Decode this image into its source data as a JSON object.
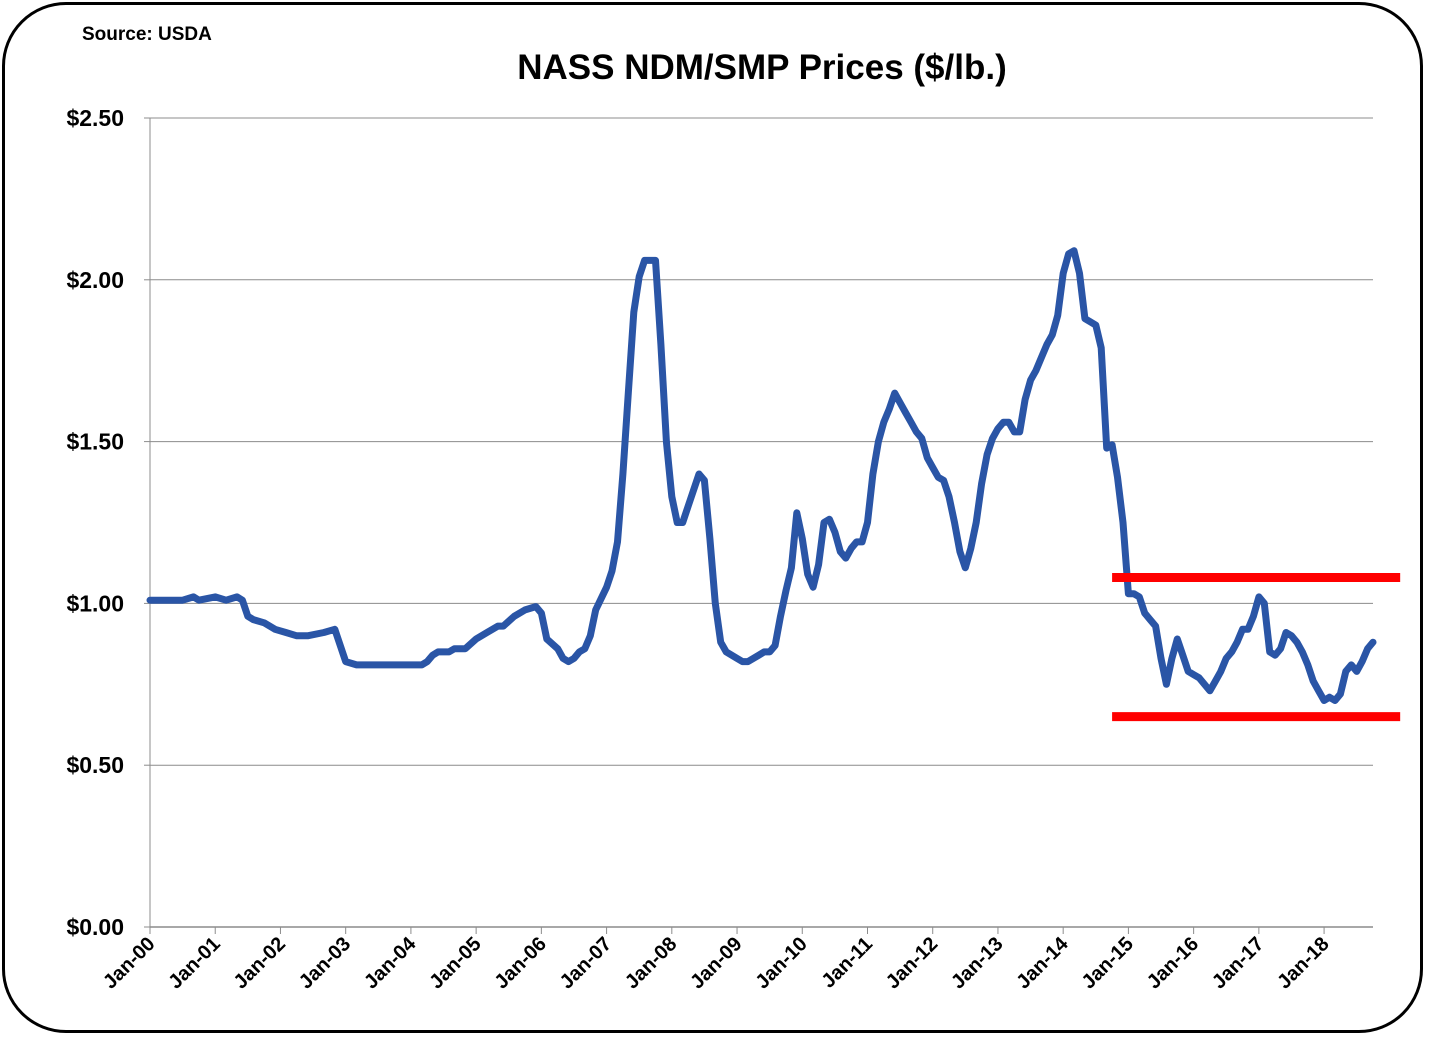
{
  "chart_data": {
    "type": "line",
    "title": "NASS NDM/SMP Prices ($/lb.)",
    "source_note": "Source: USDA",
    "xlabel": "",
    "ylabel": "",
    "ylim": [
      0,
      2.5
    ],
    "y_ticks": [
      0,
      0.5,
      1.0,
      1.5,
      2.0,
      2.5
    ],
    "y_tick_labels": [
      "$0.00",
      "$0.50",
      "$1.00",
      "$1.50",
      "$2.00",
      "$2.50"
    ],
    "x_tick_labels": [
      "Jan-00",
      "Jan-01",
      "Jan-02",
      "Jan-03",
      "Jan-04",
      "Jan-05",
      "Jan-06",
      "Jan-07",
      "Jan-08",
      "Jan-09",
      "Jan-10",
      "Jan-11",
      "Jan-12",
      "Jan-13",
      "Jan-14",
      "Jan-15",
      "Jan-16",
      "Jan-17",
      "Jan-18"
    ],
    "xlim": [
      "2000-01",
      "2018-10"
    ],
    "grid": "horizontal",
    "legend": "none",
    "colors": {
      "series": "#2a55a6",
      "bands": "#ff0000",
      "grid": "#8c8c8c"
    },
    "series": [
      {
        "points": [
          [
            "2000-01",
            1.01
          ],
          [
            "2000-07",
            1.01
          ],
          [
            "2000-09",
            1.02
          ],
          [
            "2000-10",
            1.01
          ],
          [
            "2001-01",
            1.02
          ],
          [
            "2001-03",
            1.01
          ],
          [
            "2001-05",
            1.02
          ],
          [
            "2001-06",
            1.01
          ],
          [
            "2001-07",
            0.96
          ],
          [
            "2001-08",
            0.95
          ],
          [
            "2001-10",
            0.94
          ],
          [
            "2001-12",
            0.92
          ],
          [
            "2002-02",
            0.91
          ],
          [
            "2002-04",
            0.9
          ],
          [
            "2002-06",
            0.9
          ],
          [
            "2002-09",
            0.91
          ],
          [
            "2002-11",
            0.92
          ],
          [
            "2003-01",
            0.82
          ],
          [
            "2003-03",
            0.81
          ],
          [
            "2003-06",
            0.81
          ],
          [
            "2003-08",
            0.81
          ],
          [
            "2003-11",
            0.81
          ],
          [
            "2004-03",
            0.81
          ],
          [
            "2004-04",
            0.82
          ],
          [
            "2004-05",
            0.84
          ],
          [
            "2004-06",
            0.85
          ],
          [
            "2004-08",
            0.85
          ],
          [
            "2004-09",
            0.86
          ],
          [
            "2004-11",
            0.86
          ],
          [
            "2005-01",
            0.89
          ],
          [
            "2005-03",
            0.91
          ],
          [
            "2005-05",
            0.93
          ],
          [
            "2005-06",
            0.93
          ],
          [
            "2005-08",
            0.96
          ],
          [
            "2005-10",
            0.98
          ],
          [
            "2005-12",
            0.99
          ],
          [
            "2006-01",
            0.97
          ],
          [
            "2006-02",
            0.89
          ],
          [
            "2006-04",
            0.86
          ],
          [
            "2006-05",
            0.83
          ],
          [
            "2006-06",
            0.82
          ],
          [
            "2006-07",
            0.83
          ],
          [
            "2006-08",
            0.85
          ],
          [
            "2006-09",
            0.86
          ],
          [
            "2006-10",
            0.9
          ],
          [
            "2006-11",
            0.98
          ],
          [
            "2007-01",
            1.05
          ],
          [
            "2007-02",
            1.1
          ],
          [
            "2007-03",
            1.19
          ],
          [
            "2007-04",
            1.4
          ],
          [
            "2007-05",
            1.65
          ],
          [
            "2007-06",
            1.9
          ],
          [
            "2007-07",
            2.01
          ],
          [
            "2007-08",
            2.06
          ],
          [
            "2007-10",
            2.06
          ],
          [
            "2007-11",
            1.8
          ],
          [
            "2007-12",
            1.5
          ],
          [
            "2008-01",
            1.33
          ],
          [
            "2008-02",
            1.25
          ],
          [
            "2008-03",
            1.25
          ],
          [
            "2008-04",
            1.3
          ],
          [
            "2008-06",
            1.4
          ],
          [
            "2008-07",
            1.38
          ],
          [
            "2008-08",
            1.2
          ],
          [
            "2008-09",
            1.0
          ],
          [
            "2008-10",
            0.88
          ],
          [
            "2008-11",
            0.85
          ],
          [
            "2009-01",
            0.83
          ],
          [
            "2009-02",
            0.82
          ],
          [
            "2009-03",
            0.82
          ],
          [
            "2009-05",
            0.84
          ],
          [
            "2009-06",
            0.85
          ],
          [
            "2009-07",
            0.85
          ],
          [
            "2009-08",
            0.87
          ],
          [
            "2009-09",
            0.96
          ],
          [
            "2009-10",
            1.04
          ],
          [
            "2009-11",
            1.11
          ],
          [
            "2009-12",
            1.28
          ],
          [
            "2010-01",
            1.2
          ],
          [
            "2010-02",
            1.09
          ],
          [
            "2010-03",
            1.05
          ],
          [
            "2010-04",
            1.12
          ],
          [
            "2010-05",
            1.25
          ],
          [
            "2010-06",
            1.26
          ],
          [
            "2010-07",
            1.22
          ],
          [
            "2010-08",
            1.16
          ],
          [
            "2010-09",
            1.14
          ],
          [
            "2010-10",
            1.17
          ],
          [
            "2010-11",
            1.19
          ],
          [
            "2010-12",
            1.19
          ],
          [
            "2011-01",
            1.25
          ],
          [
            "2011-02",
            1.4
          ],
          [
            "2011-03",
            1.5
          ],
          [
            "2011-04",
            1.56
          ],
          [
            "2011-05",
            1.6
          ],
          [
            "2011-06",
            1.65
          ],
          [
            "2011-07",
            1.62
          ],
          [
            "2011-08",
            1.59
          ],
          [
            "2011-09",
            1.56
          ],
          [
            "2011-10",
            1.53
          ],
          [
            "2011-11",
            1.51
          ],
          [
            "2011-12",
            1.45
          ],
          [
            "2012-01",
            1.42
          ],
          [
            "2012-02",
            1.39
          ],
          [
            "2012-03",
            1.38
          ],
          [
            "2012-04",
            1.33
          ],
          [
            "2012-05",
            1.25
          ],
          [
            "2012-06",
            1.16
          ],
          [
            "2012-07",
            1.11
          ],
          [
            "2012-08",
            1.17
          ],
          [
            "2012-09",
            1.25
          ],
          [
            "2012-10",
            1.37
          ],
          [
            "2012-11",
            1.46
          ],
          [
            "2012-12",
            1.51
          ],
          [
            "2013-01",
            1.54
          ],
          [
            "2013-02",
            1.56
          ],
          [
            "2013-03",
            1.56
          ],
          [
            "2013-04",
            1.53
          ],
          [
            "2013-05",
            1.53
          ],
          [
            "2013-06",
            1.63
          ],
          [
            "2013-07",
            1.69
          ],
          [
            "2013-08",
            1.72
          ],
          [
            "2013-09",
            1.76
          ],
          [
            "2013-10",
            1.8
          ],
          [
            "2013-11",
            1.83
          ],
          [
            "2013-12",
            1.89
          ],
          [
            "2014-01",
            2.02
          ],
          [
            "2014-02",
            2.08
          ],
          [
            "2014-03",
            2.09
          ],
          [
            "2014-04",
            2.02
          ],
          [
            "2014-05",
            1.88
          ],
          [
            "2014-06",
            1.87
          ],
          [
            "2014-07",
            1.86
          ],
          [
            "2014-08",
            1.79
          ],
          [
            "2014-09",
            1.48
          ],
          [
            "2014-10",
            1.49
          ],
          [
            "2014-11",
            1.39
          ],
          [
            "2014-12",
            1.25
          ],
          [
            "2015-01",
            1.03
          ],
          [
            "2015-02",
            1.03
          ],
          [
            "2015-03",
            1.02
          ],
          [
            "2015-04",
            0.97
          ],
          [
            "2015-05",
            0.95
          ],
          [
            "2015-06",
            0.93
          ],
          [
            "2015-07",
            0.83
          ],
          [
            "2015-08",
            0.75
          ],
          [
            "2015-09",
            0.83
          ],
          [
            "2015-10",
            0.89
          ],
          [
            "2015-11",
            0.84
          ],
          [
            "2015-12",
            0.79
          ],
          [
            "2016-01",
            0.78
          ],
          [
            "2016-02",
            0.77
          ],
          [
            "2016-03",
            0.75
          ],
          [
            "2016-04",
            0.73
          ],
          [
            "2016-05",
            0.76
          ],
          [
            "2016-06",
            0.79
          ],
          [
            "2016-07",
            0.83
          ],
          [
            "2016-08",
            0.85
          ],
          [
            "2016-09",
            0.88
          ],
          [
            "2016-10",
            0.92
          ],
          [
            "2016-11",
            0.92
          ],
          [
            "2016-12",
            0.96
          ],
          [
            "2017-01",
            1.02
          ],
          [
            "2017-02",
            1.0
          ],
          [
            "2017-03",
            0.85
          ],
          [
            "2017-04",
            0.84
          ],
          [
            "2017-05",
            0.86
          ],
          [
            "2017-06",
            0.91
          ],
          [
            "2017-07",
            0.9
          ],
          [
            "2017-08",
            0.88
          ],
          [
            "2017-09",
            0.85
          ],
          [
            "2017-10",
            0.81
          ],
          [
            "2017-11",
            0.76
          ],
          [
            "2017-12",
            0.73
          ],
          [
            "2018-01",
            0.7
          ],
          [
            "2018-02",
            0.71
          ],
          [
            "2018-03",
            0.7
          ],
          [
            "2018-04",
            0.72
          ],
          [
            "2018-05",
            0.79
          ],
          [
            "2018-06",
            0.81
          ],
          [
            "2018-07",
            0.79
          ],
          [
            "2018-08",
            0.82
          ],
          [
            "2018-09",
            0.86
          ],
          [
            "2018-10",
            0.88
          ]
        ]
      }
    ],
    "annotations": [
      {
        "kind": "horizontal-line",
        "value": 1.08,
        "from": "2014-10",
        "to": "2019-03",
        "color": "#ff0000"
      },
      {
        "kind": "horizontal-line",
        "value": 0.65,
        "from": "2014-10",
        "to": "2019-03",
        "color": "#ff0000"
      }
    ]
  }
}
